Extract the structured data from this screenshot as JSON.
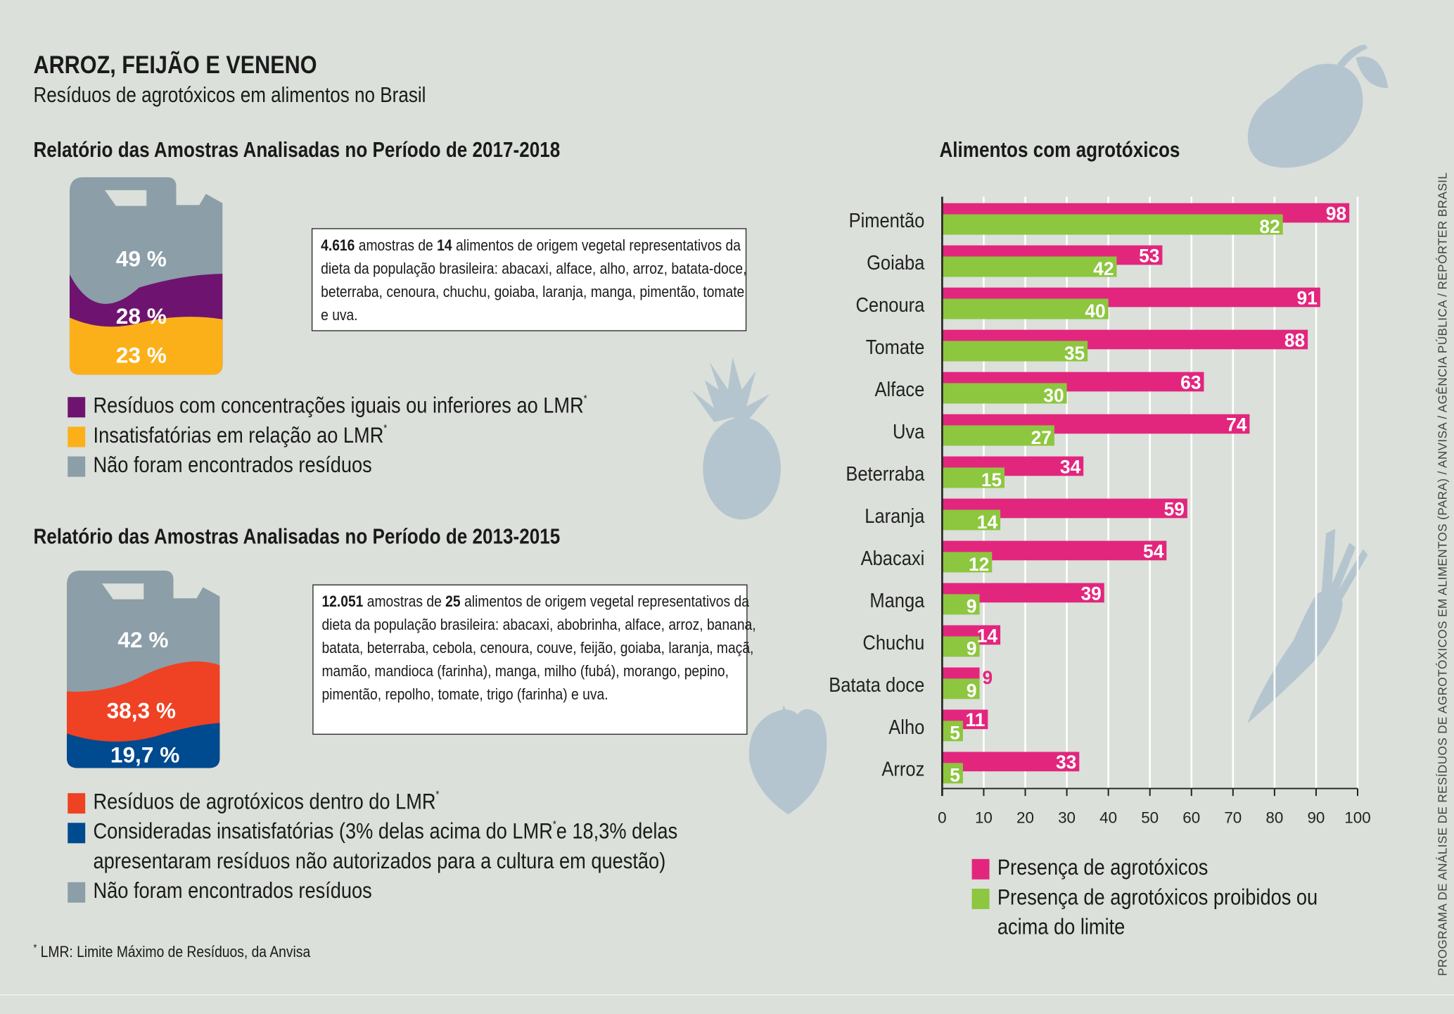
{
  "header": {
    "title": "ARROZ, FEIJÃO E VENENO",
    "subtitle": "Resíduos de agrotóxicos em alimentos no Brasil"
  },
  "report_2017": {
    "heading": "Relatório das Amostras Analisadas no Período de 2017-2018",
    "percentages": {
      "none": "49 %",
      "within": "28 %",
      "unsatisfactory": "23 %"
    },
    "box": {
      "count": "4.616",
      "mid1": " amostras de ",
      "foods": "14",
      "rest": " alimentos de origem vegetal representativos da dieta da população brasileira: abacaxi, alface, alho, arroz, batata-doce, beterraba, cenoura, chuchu, goiaba, laranja, manga, pimentão, tomate e uva."
    },
    "legend": [
      {
        "label": "Resíduos com concentrações iguais ou inferiores ao LMR",
        "sup": "*",
        "color": "#6e1470"
      },
      {
        "label": "Insatisfatórias em relação ao LMR",
        "sup": "*",
        "color": "#fbb01a"
      },
      {
        "label": "Não foram encontrados resíduos",
        "sup": "",
        "color": "#8c9ea7"
      }
    ]
  },
  "report_2013": {
    "heading": "Relatório das Amostras Analisadas no Período de 2013-2015",
    "percentages": {
      "none": "42 %",
      "within": "38,3 %",
      "unsatisfactory": "19,7 %"
    },
    "box": {
      "count": "12.051",
      "mid1": " amostras de ",
      "foods": "25",
      "rest": " alimentos de origem vegetal representativos da dieta da população brasileira: abacaxi, abobrinha, alface, arroz, banana, batata, beterraba, cebola, cenoura, couve, feijão, goiaba, laranja, maçã, mamão, mandioca (farinha), manga, milho (fubá), morango, pepino, pimentão, repolho, tomate, trigo (farinha) e uva."
    },
    "legend": [
      {
        "label": "Resíduos de agrotóxicos dentro do LMR",
        "sup": "*",
        "color": "#ef4123"
      },
      {
        "label_a": "Consideradas insatisfatórias (3% delas acima do LMR",
        "sup": "*",
        "label_b": " e 18,3% delas",
        "label_c": "apresentaram resíduos não autorizados para a cultura em questão)",
        "color": "#004a8f"
      },
      {
        "label": "Não foram encontrados resíduos",
        "sup": "",
        "color": "#8c9ea7"
      }
    ]
  },
  "footnote": {
    "mark": "*",
    "text": " LMR: Limite Máximo de Resíduos, da Anvisa"
  },
  "source": "PROGRAMA DE ANÁLISE DE RESÍDUOS DE AGROTÓXICOS EM ALIMENTOS (PARA) / ANVISA / AGÊNCIA PÚBLICA / REPÓRTER BRASIL",
  "chart_data": {
    "type": "bar",
    "orientation": "horizontal",
    "title": "Alimentos com agrotóxicos",
    "categories": [
      "Pimentão",
      "Goiaba",
      "Cenoura",
      "Tomate",
      "Alface",
      "Uva",
      "Beterraba",
      "Laranja",
      "Abacaxi",
      "Manga",
      "Chuchu",
      "Batata doce",
      "Alho",
      "Arroz"
    ],
    "series": [
      {
        "name": "Presença de agrotóxicos",
        "color": "#e2267d",
        "values": [
          98,
          53,
          91,
          88,
          63,
          74,
          34,
          59,
          54,
          39,
          14,
          9,
          11,
          33
        ]
      },
      {
        "name": "Presença de agrotóxicos proibidos ou acima do limite",
        "color": "#8dc63f",
        "values": [
          82,
          42,
          40,
          35,
          30,
          27,
          15,
          14,
          12,
          9,
          9,
          9,
          5,
          5
        ]
      }
    ],
    "xlim": [
      0,
      100
    ],
    "xticks": [
      0,
      10,
      20,
      30,
      40,
      50,
      60,
      70,
      80,
      90,
      100
    ],
    "grid": true,
    "legend_position": "bottom",
    "legend_lines": [
      [
        "Presença de agrotóxicos"
      ],
      [
        "Presença de agrotóxicos proibidos ou",
        "acima do limite"
      ]
    ]
  }
}
